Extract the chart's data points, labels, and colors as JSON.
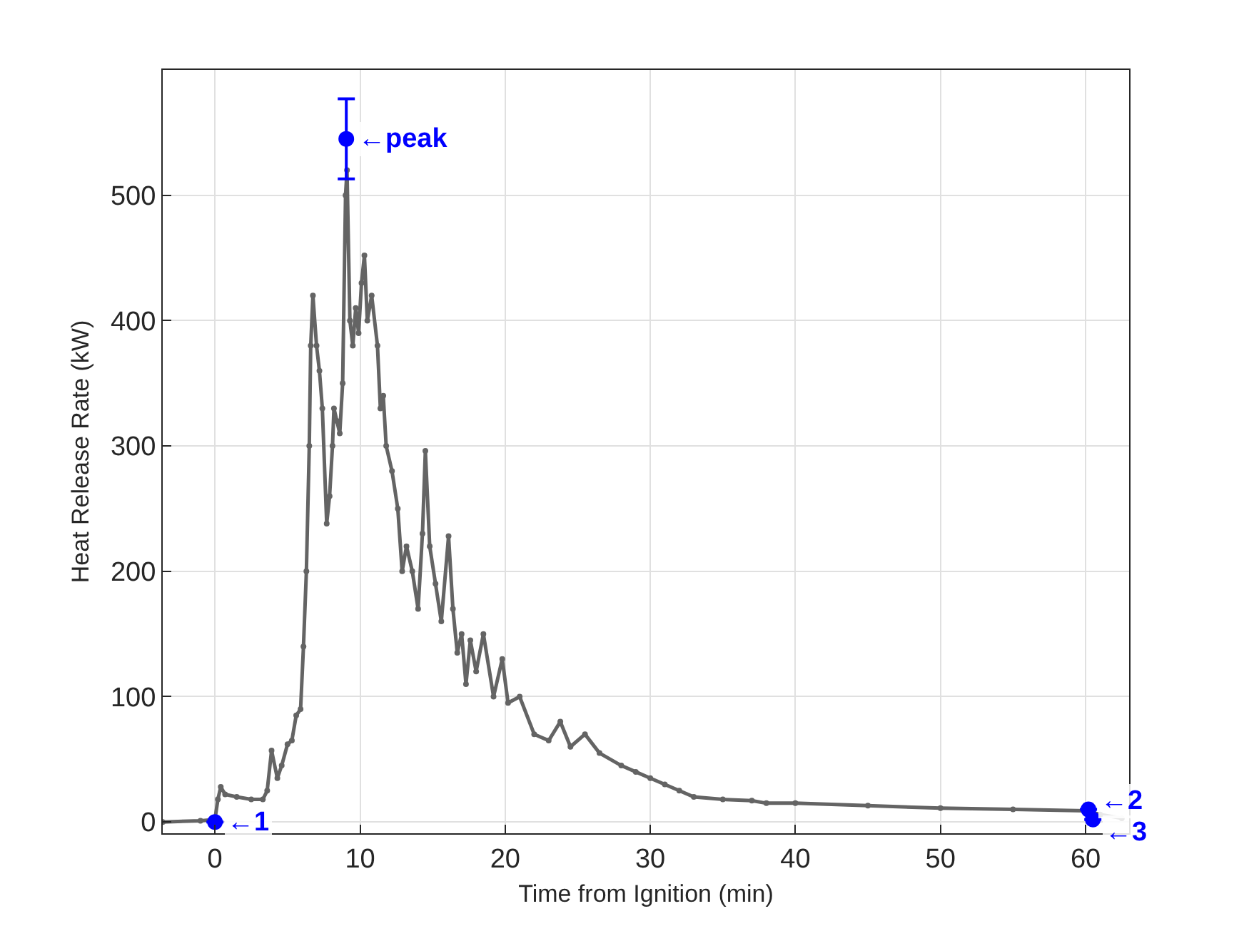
{
  "chart_data": {
    "type": "line",
    "xlabel": "Time from Ignition (min)",
    "ylabel": "Heat Release Rate (kW)",
    "xlim": [
      -3.6,
      63
    ],
    "ylim": [
      -9,
      600
    ],
    "xticks": [
      0,
      10,
      20,
      30,
      40,
      50,
      60
    ],
    "yticks": [
      0,
      100,
      200,
      300,
      400,
      500
    ],
    "grid": true,
    "series": [
      {
        "color": "#646464",
        "marker": "circle",
        "x": [
          -3.6,
          -1,
          0,
          0.2,
          0.4,
          0.7,
          1.5,
          2.5,
          3.3,
          3.6,
          3.9,
          4.3,
          4.6,
          5.0,
          5.3,
          5.6,
          5.9,
          6.1,
          6.3,
          6.5,
          6.6,
          6.75,
          7.0,
          7.2,
          7.4,
          7.7,
          7.9,
          8.1,
          8.2,
          8.4,
          8.6,
          8.8,
          9.0,
          9.1,
          9.3,
          9.5,
          9.7,
          9.9,
          10.1,
          10.3,
          10.5,
          10.8,
          11.2,
          11.4,
          11.6,
          11.8,
          12.2,
          12.6,
          12.9,
          13.2,
          13.6,
          14.0,
          14.3,
          14.5,
          14.8,
          15.2,
          15.6,
          16.1,
          16.4,
          16.7,
          17.0,
          17.3,
          17.6,
          18.0,
          18.5,
          19.2,
          19.8,
          20.2,
          21,
          22,
          23,
          23.8,
          24.5,
          25.5,
          26.5,
          28,
          29,
          30,
          31,
          32,
          33,
          35,
          37,
          38,
          40,
          45,
          50,
          55,
          60,
          61,
          62.5
        ],
        "values": [
          0,
          1,
          2,
          18,
          28,
          22,
          20,
          18,
          18,
          25,
          57,
          35,
          45,
          62,
          65,
          85,
          90,
          140,
          200,
          300,
          380,
          420,
          380,
          360,
          330,
          238,
          260,
          300,
          330,
          320,
          310,
          350,
          500,
          520,
          400,
          380,
          410,
          390,
          430,
          452,
          400,
          420,
          380,
          330,
          340,
          300,
          280,
          250,
          200,
          220,
          200,
          170,
          230,
          296,
          220,
          190,
          160,
          228,
          170,
          135,
          150,
          110,
          145,
          120,
          150,
          100,
          130,
          95,
          100,
          70,
          65,
          80,
          60,
          70,
          55,
          45,
          40,
          35,
          30,
          25,
          20,
          18,
          17,
          15,
          15,
          13,
          11,
          10,
          9,
          6,
          3
        ]
      },
      {
        "type": "scatter",
        "color": "#0000ff",
        "marker": "circle",
        "x": [
          0,
          9.05,
          60.2,
          60.5
        ],
        "values": [
          0,
          545,
          10,
          2
        ],
        "errors": [
          null,
          32,
          null,
          null
        ]
      }
    ],
    "annotations": [
      {
        "text": "←1",
        "x": 0,
        "y": 0
      },
      {
        "text": "←peak",
        "x": 9.05,
        "y": 545
      },
      {
        "text": "←2",
        "x": 60.2,
        "y": 10
      },
      {
        "text": "←3",
        "x": 60.5,
        "y": 2
      }
    ]
  }
}
